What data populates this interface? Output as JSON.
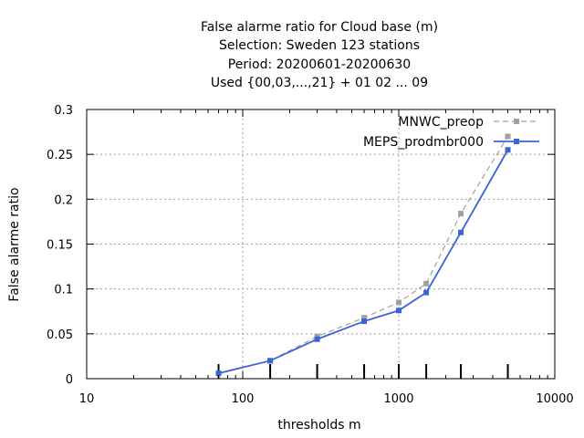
{
  "chart_data": {
    "type": "line",
    "title_lines": [
      "False alarme ratio  for Cloud base (m)",
      "Selection: Sweden    123 stations",
      "Period: 20200601-20200630",
      "Used {00,03,...,21} + 01 02 ... 09"
    ],
    "xlabel": "thresholds m",
    "ylabel": "False alarme ratio",
    "x_scale": "log",
    "xlim": [
      10,
      10000
    ],
    "ylim": [
      0,
      0.3
    ],
    "x_ticks": [
      10,
      100,
      1000,
      10000
    ],
    "x_tick_labels": [
      "10",
      "100",
      "1000",
      "10000"
    ],
    "y_ticks": [
      0,
      0.05,
      0.1,
      0.15,
      0.2,
      0.25,
      0.3
    ],
    "y_tick_labels": [
      "0",
      "0.05",
      "0.1",
      "0.15",
      "0.2",
      "0.25",
      "0.3"
    ],
    "grid": true,
    "legend_position": "top-right",
    "threshold_marks": [
      70,
      150,
      300,
      600,
      1000,
      1500,
      2500,
      5000
    ],
    "series": [
      {
        "name": "MNWC_preop",
        "color": "#a0a0a0",
        "dashed": true,
        "x": [
          70,
          150,
          300,
          600,
          1000,
          1500,
          2500,
          5000
        ],
        "y": [
          0.006,
          0.02,
          0.047,
          0.068,
          0.085,
          0.106,
          0.184,
          0.27
        ]
      },
      {
        "name": "MEPS_prodmbr000",
        "color": "#3b62d6",
        "dashed": false,
        "x": [
          70,
          150,
          300,
          600,
          1000,
          1500,
          2500,
          5000
        ],
        "y": [
          0.006,
          0.02,
          0.044,
          0.064,
          0.076,
          0.096,
          0.163,
          0.255
        ]
      }
    ]
  }
}
